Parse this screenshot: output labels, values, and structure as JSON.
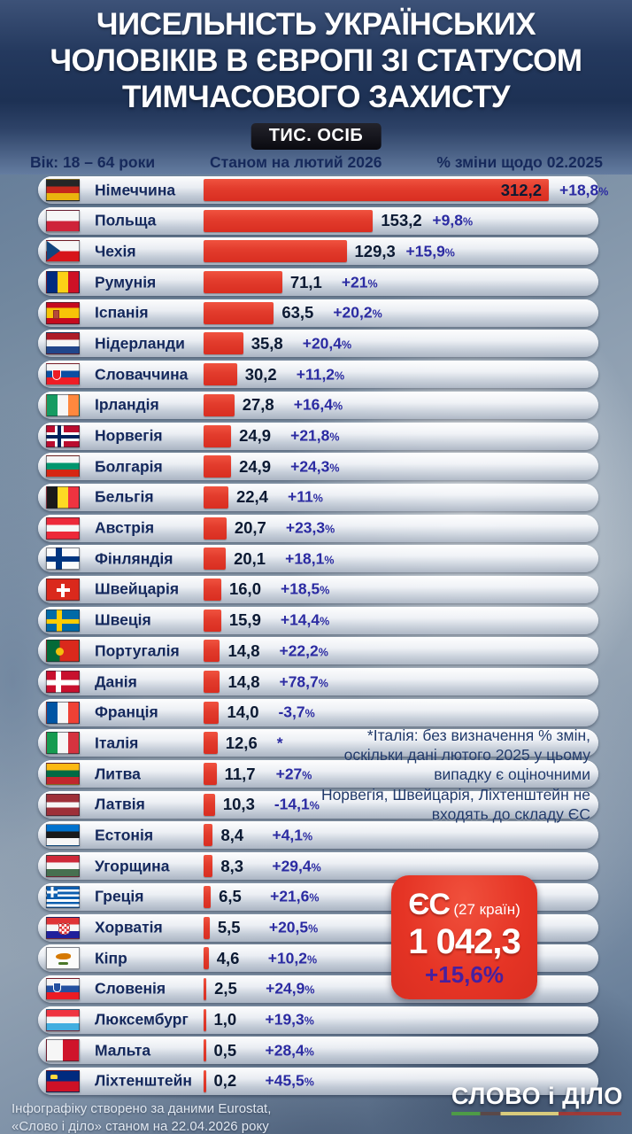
{
  "header": {
    "title": "ЧИСЕЛЬНІСТЬ УКРАЇНСЬКИХ\nЧОЛОВІКІВ В ЄВРОПІ ЗІ СТАТУСОМ\nТИМЧАСОВОГО ЗАХИСТУ",
    "units_badge": "ТИС. ОСІБ",
    "col_age": "Вік: 18 – 64 роки",
    "col_value": "Станом на лютий 2026",
    "col_change": "% зміни щодо 02.2025"
  },
  "rows": [
    {
      "flag": "germany",
      "country": "Німеччина",
      "value": "312,2",
      "change": "+18,8%"
    },
    {
      "flag": "poland",
      "country": "Польща",
      "value": "153,2",
      "change": "+9,8%"
    },
    {
      "flag": "czechia",
      "country": "Чехія",
      "value": "129,3",
      "change": "+15,9%"
    },
    {
      "flag": "romania",
      "country": "Румунія",
      "value": "71,1",
      "change": "+21%"
    },
    {
      "flag": "spain",
      "country": "Іспанія",
      "value": "63,5",
      "change": "+20,2%"
    },
    {
      "flag": "netherlands",
      "country": "Нідерланди",
      "value": "35,8",
      "change": "+20,4%"
    },
    {
      "flag": "slovakia",
      "country": "Словаччина",
      "value": "30,2",
      "change": "+11,2%"
    },
    {
      "flag": "ireland",
      "country": "Ірландія",
      "value": "27,8",
      "change": "+16,4%"
    },
    {
      "flag": "norway",
      "country": "Норвегія",
      "value": "24,9",
      "change": "+21,8%"
    },
    {
      "flag": "bulgaria",
      "country": "Болгарія",
      "value": "24,9",
      "change": "+24,3%"
    },
    {
      "flag": "belgium",
      "country": "Бельгія",
      "value": "22,4",
      "change": "+11%"
    },
    {
      "flag": "austria",
      "country": "Австрія",
      "value": "20,7",
      "change": "+23,3%"
    },
    {
      "flag": "finland",
      "country": "Фінляндія",
      "value": "20,1",
      "change": "+18,1%"
    },
    {
      "flag": "switzerland",
      "country": "Швейцарія",
      "value": "16,0",
      "change": "+18,5%"
    },
    {
      "flag": "sweden",
      "country": "Швеція",
      "value": "15,9",
      "change": "+14,4%"
    },
    {
      "flag": "portugal",
      "country": "Португалія",
      "value": "14,8",
      "change": "+22,2%"
    },
    {
      "flag": "denmark",
      "country": "Данія",
      "value": "14,8",
      "change": "+78,7%"
    },
    {
      "flag": "france",
      "country": "Франція",
      "value": "14,0",
      "change": "-3,7%"
    },
    {
      "flag": "italy",
      "country": "Італія",
      "value": "12,6",
      "change": "*"
    },
    {
      "flag": "lithuania",
      "country": "Литва",
      "value": "11,7",
      "change": "+27%"
    },
    {
      "flag": "latvia",
      "country": "Латвія",
      "value": "10,3",
      "change": "-14,1%"
    },
    {
      "flag": "estonia",
      "country": "Естонія",
      "value": "8,4",
      "change": "+4,1%"
    },
    {
      "flag": "hungary",
      "country": "Угорщина",
      "value": "8,3",
      "change": "+29,4%"
    },
    {
      "flag": "greece",
      "country": "Греція",
      "value": "6,5",
      "change": "+21,6%"
    },
    {
      "flag": "croatia",
      "country": "Хорватія",
      "value": "5,5",
      "change": "+20,5%"
    },
    {
      "flag": "cyprus",
      "country": "Кіпр",
      "value": "4,6",
      "change": "+10,2%"
    },
    {
      "flag": "slovenia",
      "country": "Словенія",
      "value": "2,5",
      "change": "+24,9%"
    },
    {
      "flag": "luxembourg",
      "country": "Люксембург",
      "value": "1,0",
      "change": "+19,3%"
    },
    {
      "flag": "malta",
      "country": "Мальта",
      "value": "0,5",
      "change": "+28,4%"
    },
    {
      "flag": "liechtenstein",
      "country": "Ліхтенштейн",
      "value": "0,2",
      "change": "+45,5%"
    }
  ],
  "notes": {
    "italy": "*Італія: без визначення % змін,\nоскільки дані лютого 2025 у цьому\nвипадку є оціночними",
    "non_eu": "Норвегія, Швейцарія, Ліхтенштейн не\nвходять до складу ЄС"
  },
  "eu_card": {
    "label": "ЄС",
    "label_suffix": "(27 країн)",
    "value": "1 042,3",
    "change": "+15,6%"
  },
  "footer": {
    "credit": "Інфографіку створено за даними Eurostat,\n«Слово і діло» станом на 22.04.2026 року",
    "brand": "СЛОВО і ДІЛО"
  },
  "colors": {
    "bar_red": "#e23b2c",
    "change_blue": "#2b2ba2",
    "name_navy": "#14285c",
    "eu_card_red": "#e53425",
    "eu_change_violet": "#47209f"
  },
  "chart_data": {
    "type": "bar",
    "orientation": "horizontal",
    "title": "Чисельність українських чоловіків в Європі зі статусом тимчасового захисту",
    "unit_label": "ТИС. ОСІБ",
    "age_note": "Вік: 18 – 64 роки",
    "categories": [
      "Німеччина",
      "Польща",
      "Чехія",
      "Румунія",
      "Іспанія",
      "Нідерланди",
      "Словаччина",
      "Ірландія",
      "Норвегія",
      "Болгарія",
      "Бельгія",
      "Австрія",
      "Фінляндія",
      "Швейцарія",
      "Швеція",
      "Португалія",
      "Данія",
      "Франція",
      "Італія",
      "Литва",
      "Латвія",
      "Естонія",
      "Угорщина",
      "Греція",
      "Хорватія",
      "Кіпр",
      "Словенія",
      "Люксембург",
      "Мальта",
      "Ліхтенштейн"
    ],
    "series": [
      {
        "name": "Станом на лютий 2026 (тис. осіб)",
        "values": [
          312.2,
          153.2,
          129.3,
          71.1,
          63.5,
          35.8,
          30.2,
          27.8,
          24.9,
          24.9,
          22.4,
          20.7,
          20.1,
          16.0,
          15.9,
          14.8,
          14.8,
          14.0,
          12.6,
          11.7,
          10.3,
          8.4,
          8.3,
          6.5,
          5.5,
          4.6,
          2.5,
          1.0,
          0.5,
          0.2
        ]
      },
      {
        "name": "% зміни щодо 02.2025",
        "values": [
          18.8,
          9.8,
          15.9,
          21,
          20.2,
          20.4,
          11.2,
          16.4,
          21.8,
          24.3,
          11,
          23.3,
          18.1,
          18.5,
          14.4,
          22.2,
          78.7,
          -3.7,
          null,
          27,
          -14.1,
          4.1,
          29.4,
          21.6,
          20.5,
          10.2,
          24.9,
          19.3,
          28.4,
          45.5
        ]
      }
    ],
    "xlim": [
      0,
      320
    ],
    "eu_total": {
      "label": "ЄС (27 країн)",
      "value": 1042.3,
      "change_pct": 15.6
    },
    "footnotes": [
      "*Італія: без визначення % змін, оскільки дані лютого 2025 у цьому випадку є оціночними",
      "Норвегія, Швейцарія, Ліхтенштейн не входять до складу ЄС"
    ],
    "source": "Інфографіку створено за даними Eurostat, «Слово і діло» станом на 22.04.2026 року"
  }
}
